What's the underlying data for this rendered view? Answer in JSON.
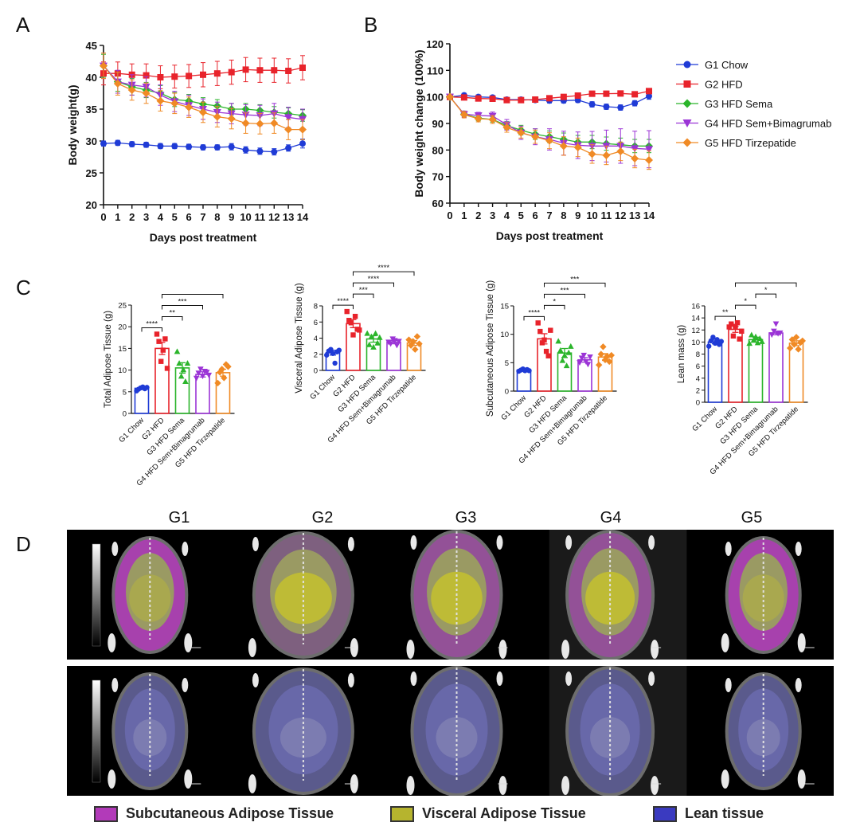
{
  "panels": {
    "a": "A",
    "b": "B",
    "c": "C",
    "d": "D"
  },
  "colors": {
    "G1": "#1f3bd6",
    "G2": "#e8232b",
    "G3": "#2bb52b",
    "G4": "#9b34d6",
    "G5": "#f08a25"
  },
  "image_headers": [
    "G1",
    "G2",
    "G3",
    "G4",
    "G5"
  ],
  "image_legend": [
    {
      "label": "Subcutaneous Adipose Tissue",
      "color": "#b23ab9"
    },
    {
      "label": "Visceral Adipose Tissue",
      "color": "#b6b42e"
    },
    {
      "label": "Lean tissue",
      "color": "#3a3ac0"
    }
  ],
  "chart_data": [
    {
      "id": "A",
      "type": "line",
      "xlabel": "Days post treatment",
      "ylabel": "Body weight(g)",
      "xlim": [
        0,
        14
      ],
      "ylim": [
        20,
        45
      ],
      "yticks": [
        20,
        25,
        30,
        35,
        40,
        45
      ],
      "x": [
        0,
        1,
        2,
        3,
        4,
        5,
        6,
        7,
        8,
        9,
        10,
        11,
        12,
        13,
        14
      ],
      "series": [
        {
          "name": "G1 Chow",
          "marker": "circle",
          "color": "#1f3bd6",
          "values": [
            29.6,
            29.7,
            29.5,
            29.4,
            29.2,
            29.2,
            29.1,
            29.0,
            29.0,
            29.1,
            28.6,
            28.4,
            28.3,
            28.9,
            29.6
          ],
          "err": [
            0.4,
            0.4,
            0.4,
            0.4,
            0.4,
            0.4,
            0.4,
            0.4,
            0.4,
            0.5,
            0.5,
            0.5,
            0.5,
            0.5,
            0.7
          ]
        },
        {
          "name": "G2 HFD",
          "marker": "square",
          "color": "#e8232b",
          "values": [
            40.6,
            40.6,
            40.4,
            40.3,
            40.0,
            40.1,
            40.2,
            40.4,
            40.6,
            40.8,
            41.2,
            41.1,
            41.1,
            41.0,
            41.5
          ],
          "err": [
            1.8,
            1.8,
            1.7,
            1.8,
            1.8,
            1.8,
            1.8,
            1.9,
            1.9,
            1.9,
            1.9,
            1.9,
            1.9,
            1.9,
            1.9
          ]
        },
        {
          "name": "G3 HFD Sema",
          "marker": "diamond",
          "color": "#2bb52b",
          "values": [
            41.8,
            39.3,
            38.5,
            38.0,
            37.5,
            36.5,
            36.3,
            35.8,
            35.5,
            35.0,
            35.0,
            34.8,
            34.5,
            34.3,
            34.0
          ],
          "err": [
            1.8,
            1.5,
            1.3,
            1.2,
            1.2,
            1.1,
            1.0,
            1.0,
            1.0,
            0.9,
            0.9,
            0.9,
            0.9,
            0.9,
            0.9
          ]
        },
        {
          "name": "G4 HFD Sem+Bimagrumab",
          "marker": "triangle-down",
          "color": "#9b34d6",
          "values": [
            41.8,
            39.3,
            38.8,
            38.5,
            37.2,
            36.2,
            35.6,
            35.0,
            34.5,
            34.3,
            34.1,
            34.0,
            34.3,
            33.7,
            33.4
          ],
          "err": [
            2.0,
            1.8,
            1.6,
            1.6,
            1.6,
            1.6,
            1.6,
            1.6,
            1.6,
            1.6,
            1.6,
            1.6,
            1.6,
            1.6,
            1.6
          ]
        },
        {
          "name": "G5 HFD Tirzepatide",
          "marker": "diamond",
          "color": "#f08a25",
          "values": [
            41.8,
            39.0,
            38.0,
            37.5,
            36.3,
            35.9,
            35.3,
            34.5,
            33.8,
            33.5,
            32.8,
            32.7,
            32.8,
            31.8,
            31.8
          ],
          "err": [
            2.0,
            1.8,
            1.6,
            1.6,
            1.6,
            1.6,
            1.6,
            1.6,
            1.6,
            1.6,
            1.6,
            1.6,
            1.6,
            1.6,
            1.6
          ]
        }
      ]
    },
    {
      "id": "B",
      "type": "line",
      "xlabel": "Days post treatment",
      "ylabel": "Body weight change (100%)",
      "xlim": [
        0,
        14
      ],
      "ylim": [
        60,
        120
      ],
      "yticks": [
        60,
        70,
        80,
        90,
        100,
        110,
        120
      ],
      "x": [
        0,
        1,
        2,
        3,
        4,
        5,
        6,
        7,
        8,
        9,
        10,
        11,
        12,
        13,
        14
      ],
      "legend": "right",
      "series": [
        {
          "name": "G1 Chow",
          "marker": "circle",
          "color": "#1f3bd6",
          "values": [
            100,
            100.6,
            100.0,
            99.8,
            99.0,
            99.0,
            98.8,
            98.6,
            98.6,
            98.8,
            97.2,
            96.3,
            96.0,
            97.6,
            100.3
          ],
          "err": [
            0.5,
            0.8,
            0.8,
            0.8,
            0.8,
            0.8,
            0.8,
            0.9,
            0.9,
            0.9,
            1.0,
            1.0,
            1.0,
            1.0,
            1.2
          ]
        },
        {
          "name": "G2 HFD",
          "marker": "square",
          "color": "#e8232b",
          "values": [
            100,
            99.8,
            99.4,
            99.3,
            98.8,
            98.8,
            99.0,
            99.5,
            100.0,
            100.5,
            101.2,
            101.2,
            101.3,
            101.0,
            102.2
          ],
          "err": [
            0.5,
            0.8,
            0.8,
            0.8,
            0.8,
            0.8,
            0.9,
            0.9,
            0.9,
            0.9,
            1.0,
            1.0,
            1.0,
            1.0,
            1.0
          ]
        },
        {
          "name": "G3 HFD Sema",
          "marker": "diamond",
          "color": "#2bb52b",
          "values": [
            100,
            93.5,
            92.0,
            91.5,
            89.2,
            87.5,
            86.0,
            85.0,
            84.0,
            83.0,
            83.0,
            82.4,
            82.0,
            81.5,
            81.5
          ],
          "err": [
            0.5,
            1.0,
            1.0,
            1.0,
            1.5,
            1.8,
            2.0,
            2.2,
            2.4,
            2.5,
            2.5,
            2.5,
            2.5,
            2.5,
            2.5
          ]
        },
        {
          "name": "G4 HFD Sem+Bimagrumab",
          "marker": "triangle-down",
          "color": "#9b34d6",
          "values": [
            100,
            93.5,
            93.0,
            92.8,
            89.5,
            86.5,
            85.0,
            84.0,
            82.6,
            81.8,
            81.5,
            81.5,
            81.5,
            80.6,
            80.3
          ],
          "err": [
            0.5,
            1.2,
            1.2,
            1.5,
            2.0,
            2.5,
            3.0,
            4.0,
            4.5,
            5.0,
            5.5,
            6.0,
            6.5,
            6.5,
            7.0
          ]
        },
        {
          "name": "G5 HFD Tirzepatide",
          "marker": "diamond",
          "color": "#f08a25",
          "values": [
            100,
            93.3,
            91.8,
            91.5,
            88.5,
            86.5,
            85.0,
            83.5,
            81.5,
            81.0,
            78.5,
            78.0,
            79.5,
            76.8,
            76.2
          ],
          "err": [
            0.5,
            1.2,
            1.2,
            1.5,
            1.8,
            2.0,
            2.5,
            3.0,
            3.5,
            3.5,
            3.5,
            3.5,
            3.5,
            3.5,
            3.5
          ]
        }
      ]
    },
    {
      "id": "C1",
      "type": "bar",
      "ylabel": "Total Adipose Tissue (g)",
      "ylim": [
        0,
        25
      ],
      "yticks": [
        0,
        5,
        10,
        15,
        20,
        25
      ],
      "categories": [
        "G1 Chow",
        "G2 HFD",
        "G3 HFD Sema",
        "G4 HFD Sem+Bimagrumab",
        "G5 HFD Tirzepatide"
      ],
      "values": [
        5.8,
        15.0,
        10.5,
        9.0,
        9.4
      ],
      "err": [
        0.3,
        1.4,
        1.2,
        0.6,
        0.8
      ],
      "points": [
        [
          5.2,
          5.6,
          5.9,
          6.1,
          5.7,
          6.0
        ],
        [
          18.3,
          16.6,
          12.0,
          14.6,
          17.2,
          10.4
        ],
        [
          14.3,
          11.6,
          8.6,
          10.1,
          7.4,
          11.6
        ],
        [
          8.1,
          9.3,
          10.2,
          8.6,
          9.7,
          9.5,
          8.8
        ],
        [
          7.0,
          9.5,
          10.2,
          8.2,
          11.3,
          10.8
        ]
      ],
      "brackets": [
        {
          "from": 0,
          "to": 1,
          "label": "****"
        },
        {
          "from": 1,
          "to": 2,
          "label": "**"
        },
        {
          "from": 1,
          "to": 3,
          "label": "***"
        },
        {
          "from": 1,
          "to": 4,
          "label": "***"
        }
      ]
    },
    {
      "id": "C2",
      "type": "bar",
      "ylabel": "Visceral Adipose Tissue (g)",
      "ylim": [
        0,
        8
      ],
      "yticks": [
        0,
        2,
        4,
        6,
        8
      ],
      "categories": [
        "G1 Chow",
        "G2 HFD",
        "G3 HFD Sema",
        "G4 HFD Sem+Bimagrumab",
        "G5 HFD Tirzepatide"
      ],
      "values": [
        2.2,
        5.8,
        3.9,
        3.5,
        3.4
      ],
      "err": [
        0.3,
        0.5,
        0.4,
        0.2,
        0.3
      ],
      "points": [
        [
          1.9,
          2.4,
          2.6,
          2.1,
          0.9,
          2.3,
          2.5
        ],
        [
          7.3,
          6.2,
          5.9,
          4.4,
          6.7,
          5.1,
          5.0
        ],
        [
          4.6,
          3.2,
          4.2,
          2.9,
          4.6,
          3.4,
          4.1
        ],
        [
          3.5,
          3.3,
          3.9,
          3.7,
          3.1,
          3.6
        ],
        [
          3.8,
          3.1,
          3.6,
          2.6,
          4.2,
          3.3
        ]
      ],
      "brackets": [
        {
          "from": 0,
          "to": 1,
          "label": "****"
        },
        {
          "from": 1,
          "to": 2,
          "label": "***"
        },
        {
          "from": 1,
          "to": 3,
          "label": "****"
        },
        {
          "from": 1,
          "to": 4,
          "label": "****"
        }
      ]
    },
    {
      "id": "C3",
      "type": "bar",
      "ylabel": "Subcutaneous Adipose Tissue (g)",
      "ylim": [
        0,
        15
      ],
      "yticks": [
        0,
        5,
        10,
        15
      ],
      "categories": [
        "G1 Chow",
        "G2 HFD",
        "G3 HFD Sema",
        "G4 HFD Sem+Bimagrumab",
        "G5 HFD Tirzepatide"
      ],
      "values": [
        3.7,
        9.2,
        6.7,
        5.5,
        6.0
      ],
      "err": [
        0.2,
        0.9,
        0.8,
        0.4,
        0.6
      ],
      "points": [
        [
          3.5,
          3.7,
          3.9,
          3.6,
          3.8,
          3.6
        ],
        [
          12.0,
          10.5,
          8.5,
          9.0,
          7.0,
          6.2,
          10.7
        ],
        [
          8.8,
          7.2,
          5.4,
          6.3,
          4.5,
          6.8,
          7.9
        ],
        [
          5.0,
          5.8,
          6.3,
          5.2,
          4.7,
          6.0
        ],
        [
          4.6,
          6.5,
          7.8,
          5.5,
          6.1,
          5.2,
          6.3
        ]
      ],
      "brackets": [
        {
          "from": 0,
          "to": 1,
          "label": "****"
        },
        {
          "from": 1,
          "to": 2,
          "label": "*"
        },
        {
          "from": 1,
          "to": 3,
          "label": "***"
        },
        {
          "from": 1,
          "to": 4,
          "label": "***"
        }
      ]
    },
    {
      "id": "C4",
      "type": "bar",
      "ylabel": "Lean mass (g)",
      "ylim": [
        0,
        16
      ],
      "yticks": [
        0,
        2,
        4,
        6,
        8,
        10,
        12,
        14,
        16
      ],
      "categories": [
        "G1 Chow",
        "G2 HFD",
        "G3 HFD Sema",
        "G4 HFD Sem+Bimagrumab",
        "G5 HFD Tirzepatide"
      ],
      "values": [
        10.0,
        12.1,
        10.4,
        11.5,
        9.8
      ],
      "err": [
        0.3,
        0.5,
        0.4,
        0.3,
        0.4
      ],
      "points": [
        [
          9.3,
          10.2,
          10.8,
          9.8,
          10.4,
          9.6,
          10.1
        ],
        [
          12.5,
          13.0,
          11.0,
          12.6,
          13.2,
          10.5,
          11.8
        ],
        [
          9.8,
          11.2,
          10.3,
          10.9,
          9.9,
          10.6,
          10.1
        ],
        [
          11.2,
          11.8,
          13.0,
          11.4,
          11.5
        ],
        [
          9.0,
          10.4,
          9.6,
          10.8,
          8.8,
          9.9,
          10.2
        ]
      ],
      "brackets": [
        {
          "from": 0,
          "to": 1,
          "label": "**"
        },
        {
          "from": 1,
          "to": 2,
          "label": "*"
        },
        {
          "from": 2,
          "to": 3,
          "label": "*"
        },
        {
          "from": 1,
          "to": 4,
          "label": "***"
        }
      ]
    }
  ]
}
